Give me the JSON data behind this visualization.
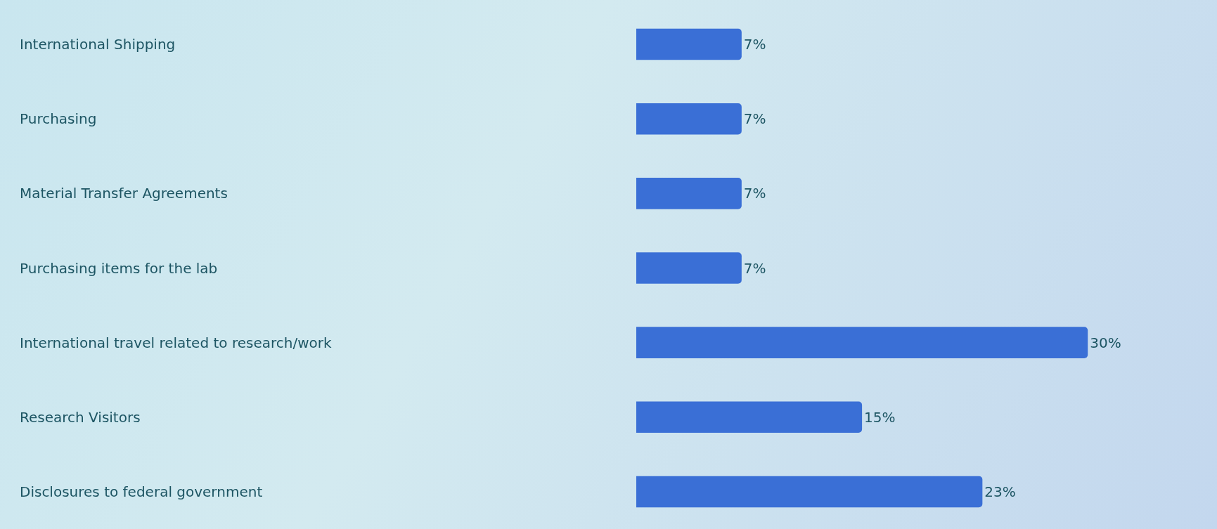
{
  "chart_data": {
    "type": "bar",
    "orientation": "horizontal",
    "categories": [
      "International Shipping",
      "Purchasing",
      "Material Transfer Agreements",
      "Purchasing items for the lab",
      "International travel related to research/work",
      "Research Visitors",
      "Disclosures to federal government"
    ],
    "values": [
      7,
      7,
      7,
      7,
      30,
      15,
      23
    ],
    "value_labels": [
      "7%",
      "7%",
      "7%",
      "7%",
      "30%",
      "15%",
      "23%"
    ],
    "color": "#3a6fd6"
  }
}
